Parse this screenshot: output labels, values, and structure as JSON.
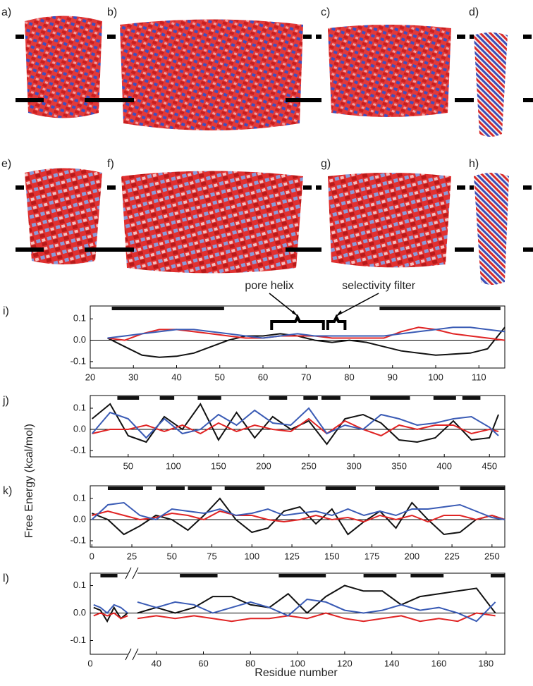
{
  "panels": [
    "a)",
    "b)",
    "c)",
    "d)",
    "e)",
    "f)",
    "g)",
    "h)"
  ],
  "shared_axes": {
    "y_label": "Free Energy (kcal/mol)",
    "x_label": "Residue number"
  },
  "chart_data": [
    {
      "type": "line",
      "title": "i)",
      "x": [
        24,
        28,
        32,
        36,
        40,
        44,
        48,
        52,
        56,
        60,
        64,
        68,
        72,
        76,
        80,
        84,
        88,
        92,
        96,
        100,
        104,
        108,
        112,
        116
      ],
      "series": [
        {
          "color": "#111111",
          "values": [
            0.01,
            -0.03,
            -0.07,
            -0.08,
            -0.075,
            -0.06,
            -0.03,
            0.0,
            0.02,
            0.02,
            0.03,
            0.02,
            0.0,
            -0.01,
            0.0,
            -0.01,
            -0.03,
            -0.05,
            -0.06,
            -0.07,
            -0.065,
            -0.06,
            -0.04,
            0.06
          ]
        },
        {
          "color": "#e02424",
          "values": [
            0.01,
            0.0,
            0.03,
            0.05,
            0.05,
            0.04,
            0.03,
            0.02,
            0.01,
            0.01,
            0.02,
            0.02,
            0.02,
            0.01,
            0.01,
            0.01,
            0.01,
            0.04,
            0.06,
            0.05,
            0.03,
            0.02,
            0.01,
            0.0
          ]
        },
        {
          "color": "#3a5bb5",
          "values": [
            0.01,
            0.02,
            0.03,
            0.04,
            0.05,
            0.05,
            0.04,
            0.03,
            0.02,
            0.01,
            0.02,
            0.03,
            0.02,
            0.02,
            0.02,
            0.02,
            0.02,
            0.03,
            0.04,
            0.05,
            0.06,
            0.06,
            0.05,
            0.04
          ]
        }
      ],
      "segments": [
        [
          25,
          51
        ],
        [
          87,
          115
        ]
      ],
      "annotations": [
        {
          "text": "pore helix",
          "x": [
            62,
            74
          ]
        },
        {
          "text": "selectivity filter",
          "x": [
            75,
            79
          ]
        }
      ],
      "xlim": [
        20,
        116
      ],
      "xticks": [
        20,
        30,
        40,
        50,
        60,
        70,
        80,
        90,
        100,
        110
      ],
      "ylim": [
        -0.13,
        0.16
      ],
      "yticks": [
        0.1,
        {
          "value": 0,
          "label": "0.0"
        },
        -0.1
      ]
    },
    {
      "type": "line",
      "title": "j)",
      "x": [
        10,
        30,
        50,
        70,
        90,
        110,
        130,
        150,
        170,
        190,
        210,
        230,
        250,
        270,
        290,
        310,
        330,
        350,
        370,
        390,
        410,
        430,
        450,
        460
      ],
      "series": [
        {
          "color": "#111111",
          "values": [
            0.05,
            0.12,
            -0.03,
            -0.06,
            0.06,
            0.0,
            0.12,
            -0.05,
            0.08,
            -0.04,
            0.06,
            0.0,
            0.04,
            -0.07,
            0.05,
            0.07,
            0.03,
            -0.05,
            -0.06,
            -0.04,
            0.04,
            -0.05,
            -0.04,
            0.07
          ]
        },
        {
          "color": "#e02424",
          "values": [
            -0.02,
            0.0,
            0.0,
            0.02,
            -0.01,
            0.02,
            -0.02,
            0.03,
            -0.01,
            0.02,
            0.0,
            -0.01,
            0.05,
            -0.02,
            0.04,
            0.0,
            -0.03,
            0.02,
            0.0,
            0.02,
            0.02,
            -0.02,
            0.0,
            -0.01
          ]
        },
        {
          "color": "#3a5bb5",
          "values": [
            -0.02,
            0.08,
            0.05,
            -0.04,
            0.05,
            -0.02,
            0.0,
            0.07,
            0.02,
            0.09,
            0.03,
            0.02,
            0.1,
            -0.02,
            0.02,
            0.0,
            0.07,
            0.05,
            0.02,
            0.03,
            0.05,
            0.06,
            0.01,
            -0.03
          ]
        }
      ],
      "segments": [
        [
          38,
          62
        ],
        [
          85,
          101
        ],
        [
          127,
          153
        ],
        [
          206,
          226
        ],
        [
          244,
          260
        ],
        [
          264,
          285
        ],
        [
          318,
          362
        ],
        [
          388,
          413
        ],
        [
          420,
          440
        ]
      ],
      "xlim": [
        8,
        467
      ],
      "xticks": [
        50,
        100,
        150,
        200,
        250,
        300,
        350,
        400,
        450
      ],
      "ylim": [
        -0.13,
        0.16
      ],
      "yticks": [
        0.1,
        {
          "value": 0,
          "label": "0.0"
        },
        -0.1
      ]
    },
    {
      "type": "line",
      "title": "k)",
      "x": [
        0,
        10,
        20,
        30,
        40,
        50,
        60,
        70,
        80,
        90,
        100,
        110,
        120,
        130,
        140,
        150,
        160,
        170,
        180,
        190,
        200,
        210,
        220,
        230,
        240,
        250,
        258
      ],
      "series": [
        {
          "color": "#111111",
          "values": [
            0.03,
            0.0,
            -0.07,
            -0.03,
            0.02,
            0.0,
            -0.05,
            0.02,
            0.1,
            0.0,
            -0.06,
            -0.04,
            0.04,
            0.06,
            -0.02,
            0.05,
            -0.07,
            -0.01,
            0.04,
            -0.04,
            0.08,
            0.0,
            -0.07,
            -0.06,
            0.0,
            0.02,
            0.0
          ]
        },
        {
          "color": "#e02424",
          "values": [
            0.02,
            0.04,
            0.02,
            0.0,
            0.01,
            0.03,
            0.02,
            0.0,
            0.04,
            0.02,
            0.02,
            0.0,
            -0.01,
            0.0,
            0.02,
            0.0,
            0.01,
            -0.01,
            0.02,
            0.0,
            0.02,
            -0.01,
            0.02,
            0.02,
            0.0,
            0.02,
            0.0
          ]
        },
        {
          "color": "#3a5bb5",
          "values": [
            0.0,
            0.07,
            0.08,
            0.02,
            0.0,
            0.05,
            0.04,
            0.03,
            0.05,
            0.02,
            0.03,
            0.05,
            0.02,
            0.03,
            0.04,
            0.02,
            0.05,
            0.02,
            0.04,
            0.02,
            0.05,
            0.05,
            0.06,
            0.07,
            0.04,
            0.01,
            0.0
          ]
        }
      ],
      "segments": [
        [
          10,
          32
        ],
        [
          40,
          58
        ],
        [
          60,
          75
        ],
        [
          83,
          108
        ],
        [
          146,
          165
        ],
        [
          177,
          217
        ],
        [
          230,
          258
        ]
      ],
      "xlim": [
        -1,
        258
      ],
      "xticks": [
        0,
        25,
        50,
        75,
        100,
        125,
        150,
        175,
        200,
        225,
        250
      ],
      "ylim": [
        -0.13,
        0.16
      ],
      "yticks": [
        0.1,
        {
          "value": 0,
          "label": "0.0"
        },
        -0.1
      ]
    },
    {
      "type": "line",
      "title": "l)",
      "x": [
        2,
        6,
        10,
        14,
        18,
        22,
        27,
        32,
        40,
        48,
        56,
        64,
        72,
        80,
        88,
        96,
        104,
        112,
        120,
        128,
        136,
        144,
        152,
        160,
        168,
        176,
        184
      ],
      "series": [
        {
          "color": "#111111",
          "values": [
            0.02,
            0.01,
            -0.03,
            0.02,
            -0.02,
            0.0,
            null,
            0.0,
            0.02,
            0.0,
            0.02,
            0.06,
            0.06,
            0.03,
            0.02,
            0.07,
            0.0,
            0.06,
            0.1,
            0.08,
            0.08,
            0.03,
            0.06,
            0.07,
            0.08,
            0.09,
            0.0
          ]
        },
        {
          "color": "#e02424",
          "values": [
            -0.01,
            0.0,
            -0.01,
            0.0,
            -0.02,
            -0.01,
            null,
            -0.02,
            -0.01,
            -0.02,
            -0.01,
            -0.02,
            -0.03,
            -0.02,
            -0.02,
            -0.01,
            -0.02,
            0.0,
            -0.02,
            -0.03,
            -0.02,
            -0.01,
            -0.03,
            -0.02,
            -0.03,
            0.0,
            -0.01
          ]
        },
        {
          "color": "#3a5bb5",
          "values": [
            0.03,
            0.02,
            0.0,
            0.03,
            0.02,
            0.0,
            null,
            0.04,
            0.02,
            0.04,
            0.03,
            0.0,
            0.02,
            0.04,
            0.02,
            -0.01,
            0.05,
            0.04,
            0.01,
            0.0,
            0.01,
            0.03,
            0.01,
            0.02,
            0.0,
            -0.03,
            0.04
          ]
        }
      ],
      "segments": [
        [
          6,
          16
        ],
        [
          50,
          66
        ],
        [
          92,
          112
        ],
        [
          128,
          142
        ],
        [
          148,
          162
        ],
        [
          182,
          188
        ]
      ],
      "xlim": [
        0,
        188
      ],
      "xbreak": [
        22,
        32
      ],
      "xticks": [
        0,
        40,
        60,
        80,
        100,
        120,
        140,
        160,
        180
      ],
      "ylim": [
        -0.15,
        0.145
      ],
      "yticks": [
        0.1,
        {
          "value": 0,
          "label": "0.0"
        },
        -0.1
      ]
    }
  ]
}
